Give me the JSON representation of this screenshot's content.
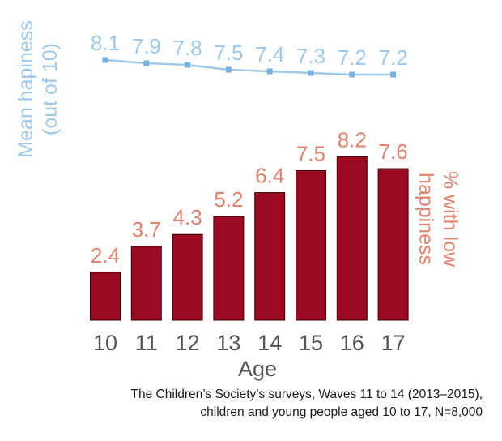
{
  "chart_data": {
    "type": "bar+line",
    "categories": [
      "10",
      "11",
      "12",
      "13",
      "14",
      "15",
      "16",
      "17"
    ],
    "xlabel": "Age",
    "series": [
      {
        "name": "Mean hapiness (out of 10)",
        "type": "line",
        "values": [
          8.1,
          7.9,
          7.8,
          7.5,
          7.4,
          7.3,
          7.2,
          7.2
        ],
        "value_labels": [
          "8.1",
          "7.9",
          "7.8",
          "7.5",
          "7.4",
          "7.3",
          "7.2",
          "7.2"
        ],
        "color": "#9ec9ea",
        "axis_label_lines": [
          "Mean hapiness",
          "(out of 10)"
        ]
      },
      {
        "name": "% with low happiness",
        "type": "bar",
        "values": [
          2.4,
          3.7,
          4.3,
          5.2,
          6.4,
          7.5,
          8.2,
          7.6
        ],
        "value_labels": [
          "2.4",
          "3.7",
          "4.3",
          "5.2",
          "6.4",
          "7.5",
          "8.2",
          "7.6"
        ],
        "color": "#9b0a22",
        "label_color": "#e0826d",
        "axis_label_lines": [
          "% with low",
          "happiness"
        ]
      }
    ],
    "colors": {
      "axis_text": "#555555",
      "line_marker": "#7ab0e0"
    }
  },
  "source": {
    "line1": "The Children’s Society’s surveys, Waves 11 to 14 (2013–2015),",
    "line2": "children and young people aged 10 to 17, N=8,000"
  }
}
